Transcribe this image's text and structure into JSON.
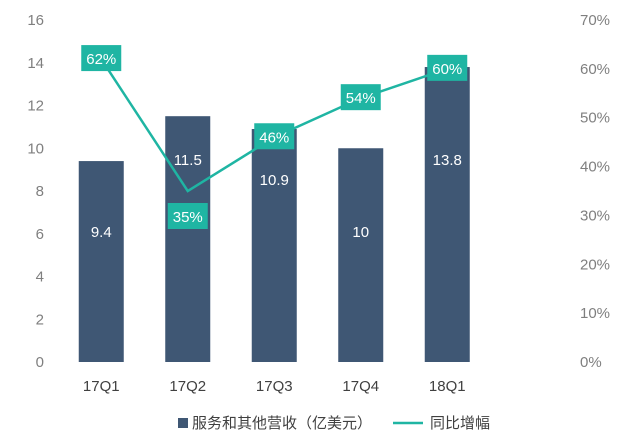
{
  "colors": {
    "bar": "#3f5774",
    "line": "#1fb5a3",
    "label_box": "#1fb5a3",
    "tick_text": "#7f7f7f"
  },
  "chart_data": {
    "type": "bar",
    "title": "",
    "xlabel": "",
    "categories": [
      "17Q1",
      "17Q2",
      "17Q3",
      "17Q4",
      "18Q1"
    ],
    "series": [
      {
        "name": "服务和其他营收（亿美元）",
        "type": "bar",
        "axis": "left",
        "values": [
          9.4,
          11.5,
          10.9,
          10,
          13.8
        ],
        "labels": [
          "9.4",
          "11.5",
          "10.9",
          "10",
          "13.8"
        ]
      },
      {
        "name": "同比增幅",
        "type": "line",
        "axis": "right",
        "values": [
          62,
          35,
          46,
          54,
          60
        ],
        "labels": [
          "62%",
          "35%",
          "46%",
          "54%",
          "60%"
        ]
      }
    ],
    "y_left": {
      "min": 0,
      "max": 16,
      "ticks": [
        "0",
        "2",
        "4",
        "6",
        "8",
        "10",
        "12",
        "14",
        "16"
      ]
    },
    "y_right": {
      "min": 0,
      "max": 70,
      "ticks": [
        "0%",
        "10%",
        "20%",
        "30%",
        "40%",
        "50%",
        "60%",
        "70%"
      ]
    },
    "grid": false,
    "legend_position": "bottom-center"
  }
}
